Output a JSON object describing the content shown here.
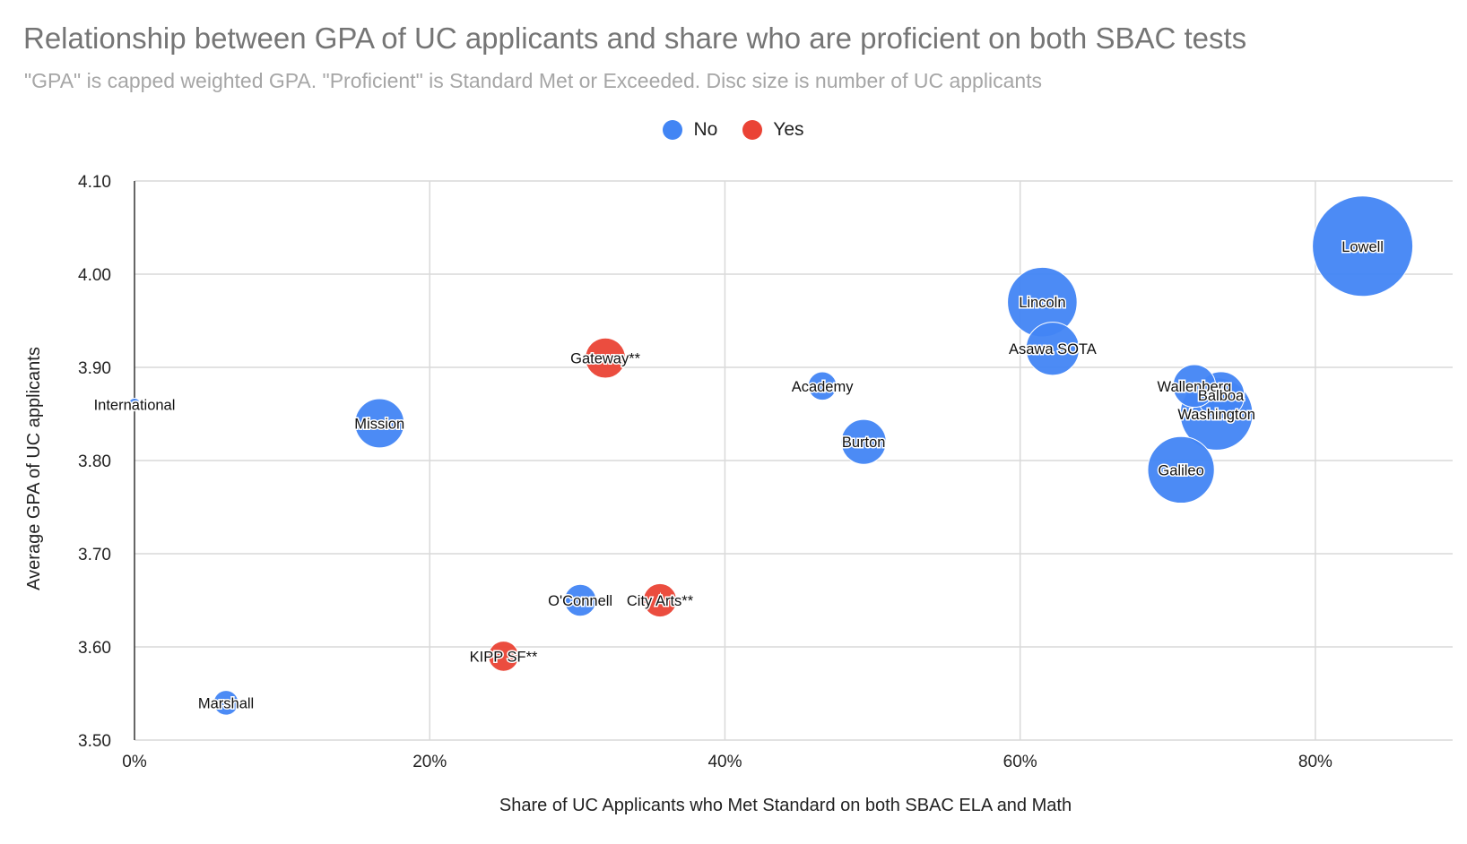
{
  "chart_data": {
    "type": "bubble",
    "title": "Relationship between GPA of UC applicants and share who are proficient on both SBAC tests",
    "subtitle": "\"GPA\" is capped weighted GPA. \"Proficient\" is Standard Met or Exceeded. Disc size is number of UC applicants",
    "xlabel": "Share of UC Applicants who Met Standard on both SBAC ELA and Math",
    "ylabel": "Average GPA of UC applicants",
    "xlim": [
      0,
      0.893
    ],
    "ylim": [
      3.5,
      4.1
    ],
    "x_ticks": [
      0,
      0.2,
      0.4,
      0.6,
      0.8
    ],
    "x_tick_labels": [
      "0%",
      "20%",
      "40%",
      "60%",
      "80%"
    ],
    "y_ticks": [
      3.5,
      3.6,
      3.7,
      3.8,
      3.9,
      4.0,
      4.1
    ],
    "y_tick_labels": [
      "3.50",
      "3.60",
      "3.70",
      "3.80",
      "3.90",
      "4.00",
      "4.10"
    ],
    "grid": true,
    "legend_position": "top",
    "series": [
      {
        "name": "No",
        "color": "#4285f4"
      },
      {
        "name": "Yes",
        "color": "#ea4335"
      }
    ],
    "points": [
      {
        "label": "International",
        "x": 0.0,
        "y": 3.86,
        "size": 8,
        "series": "No"
      },
      {
        "label": "Marshall",
        "x": 0.062,
        "y": 3.54,
        "size": 30,
        "series": "No"
      },
      {
        "label": "Mission",
        "x": 0.166,
        "y": 3.84,
        "size": 120,
        "series": "No"
      },
      {
        "label": "KIPP SF**",
        "x": 0.25,
        "y": 3.59,
        "size": 45,
        "series": "Yes"
      },
      {
        "label": "O'Connell",
        "x": 0.302,
        "y": 3.65,
        "size": 50,
        "series": "No"
      },
      {
        "label": "Gateway**",
        "x": 0.319,
        "y": 3.91,
        "size": 80,
        "series": "Yes"
      },
      {
        "label": "City Arts**",
        "x": 0.356,
        "y": 3.65,
        "size": 55,
        "series": "Yes"
      },
      {
        "label": "Academy",
        "x": 0.466,
        "y": 3.88,
        "size": 40,
        "series": "No"
      },
      {
        "label": "Burton",
        "x": 0.494,
        "y": 3.82,
        "size": 100,
        "series": "No"
      },
      {
        "label": "Asawa SOTA",
        "x": 0.622,
        "y": 3.92,
        "size": 140,
        "series": "No"
      },
      {
        "label": "Lincoln",
        "x": 0.615,
        "y": 3.97,
        "size": 240,
        "series": "No"
      },
      {
        "label": "Galileo",
        "x": 0.709,
        "y": 3.79,
        "size": 220,
        "series": "No"
      },
      {
        "label": "Wallenberg",
        "x": 0.718,
        "y": 3.88,
        "size": 90,
        "series": "No"
      },
      {
        "label": "Balboa",
        "x": 0.736,
        "y": 3.87,
        "size": 110,
        "series": "No"
      },
      {
        "label": "Washington",
        "x": 0.733,
        "y": 3.85,
        "size": 260,
        "series": "No"
      },
      {
        "label": "Lowell",
        "x": 0.832,
        "y": 4.03,
        "size": 500,
        "series": "No"
      }
    ]
  }
}
